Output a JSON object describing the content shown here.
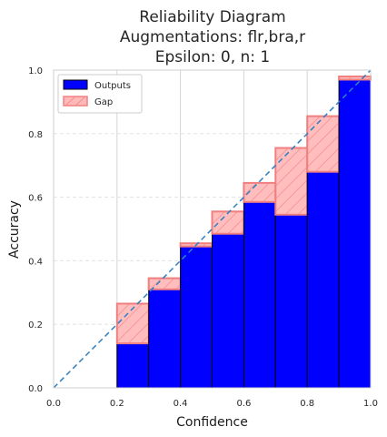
{
  "chart_data": {
    "type": "bar",
    "title_lines": [
      "Reliability Diagram",
      "Augmentations: flr,bra,r",
      "Epsilon: 0, n: 1"
    ],
    "xlabel": "Confidence",
    "ylabel": "Accuracy",
    "xlim": [
      0,
      1
    ],
    "ylim": [
      0,
      1
    ],
    "xticks": [
      "0.0",
      "0.2",
      "0.4",
      "0.6",
      "0.8",
      "1.0"
    ],
    "yticks": [
      "0.0",
      "0.2",
      "0.4",
      "0.6",
      "0.8",
      "1.0"
    ],
    "bins": [
      {
        "left": 0.0,
        "right": 0.1,
        "expected": 0.0,
        "output": 0.0
      },
      {
        "left": 0.1,
        "right": 0.2,
        "expected": 0.0,
        "output": 0.0
      },
      {
        "left": 0.2,
        "right": 0.3,
        "expected": 0.265,
        "output": 0.14
      },
      {
        "left": 0.3,
        "right": 0.4,
        "expected": 0.345,
        "output": 0.31
      },
      {
        "left": 0.4,
        "right": 0.5,
        "expected": 0.455,
        "output": 0.445
      },
      {
        "left": 0.5,
        "right": 0.6,
        "expected": 0.555,
        "output": 0.485
      },
      {
        "left": 0.6,
        "right": 0.7,
        "expected": 0.645,
        "output": 0.585
      },
      {
        "left": 0.7,
        "right": 0.8,
        "expected": 0.755,
        "output": 0.545
      },
      {
        "left": 0.8,
        "right": 0.9,
        "expected": 0.855,
        "output": 0.68
      },
      {
        "left": 0.9,
        "right": 1.0,
        "expected": 0.98,
        "output": 0.97
      }
    ],
    "legend": {
      "placement": "top-left",
      "entries": [
        {
          "label": "Outputs",
          "color": "#0000ff"
        },
        {
          "label": "Gap",
          "color": "#ff0000"
        }
      ]
    },
    "diagonal": true,
    "grid": true,
    "colors": {
      "outputs_fill": "#0000ff",
      "gap_fill": "#ffb9b9",
      "gap_edge": "#f08080",
      "diagonal": "#2d7fc2",
      "grid": "#e3e3e3"
    }
  }
}
